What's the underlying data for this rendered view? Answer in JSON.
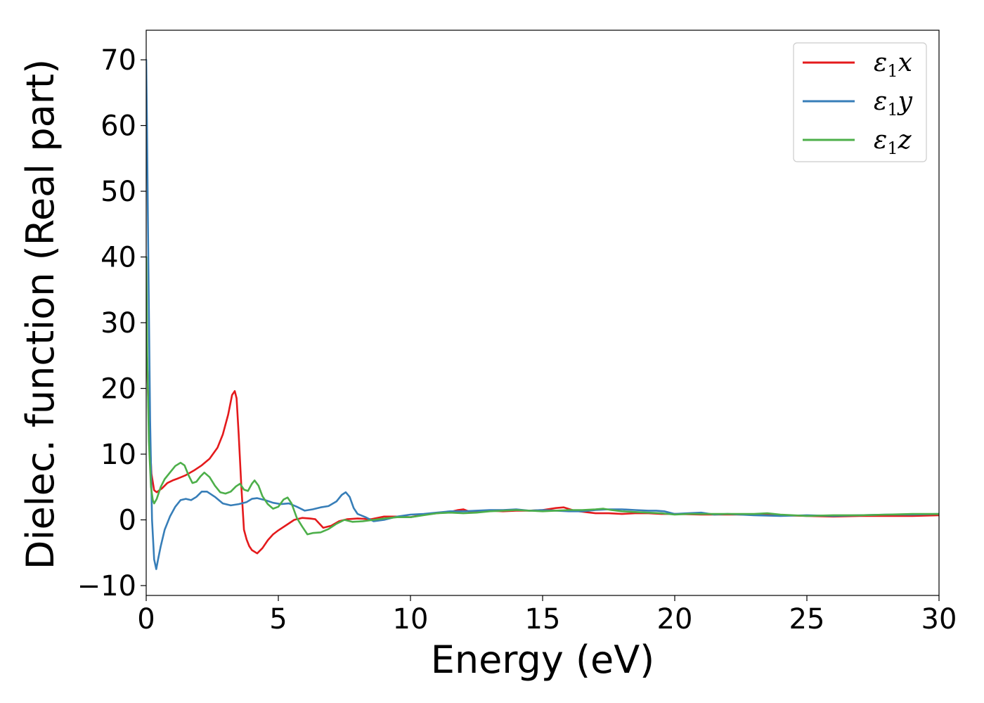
{
  "chart_data": {
    "type": "line",
    "xlabel": "Energy (eV)",
    "ylabel": "Dielec. function (Real part)",
    "xlim": [
      0,
      30
    ],
    "ylim": [
      -11.5,
      74.5
    ],
    "xticks": [
      0,
      5,
      10,
      15,
      20,
      25,
      30
    ],
    "yticks": [
      -10,
      0,
      10,
      20,
      30,
      40,
      50,
      60,
      70
    ],
    "ytick_labels": [
      "−10",
      "0",
      "10",
      "20",
      "30",
      "40",
      "50",
      "60",
      "70"
    ],
    "grid": false,
    "legend_position": "top-right",
    "series": [
      {
        "name": "ε1x",
        "name_base": "ε",
        "name_sub": "1",
        "name_suffix": "x",
        "color": "#e41a1c",
        "x": [
          0,
          0.05,
          0.1,
          0.2,
          0.3,
          0.4,
          0.6,
          0.8,
          1.0,
          1.2,
          1.5,
          1.8,
          2.1,
          2.4,
          2.7,
          2.9,
          3.1,
          3.25,
          3.35,
          3.42,
          3.5,
          3.6,
          3.7,
          3.8,
          3.9,
          4.0,
          4.2,
          4.4,
          4.6,
          4.8,
          5.0,
          5.3,
          5.6,
          5.9,
          6.2,
          6.4,
          6.7,
          7.0,
          7.3,
          7.6,
          8.0,
          8.5,
          9.0,
          9.5,
          10.0,
          10.5,
          11.0,
          11.5,
          11.8,
          12.0,
          12.2,
          12.5,
          13.0,
          13.5,
          14.0,
          14.5,
          15.0,
          15.5,
          15.8,
          16.2,
          16.6,
          17.0,
          17.5,
          18.0,
          18.5,
          19.0,
          19.5,
          20.0,
          21.0,
          22.0,
          23.0,
          24.0,
          25.0,
          26.0,
          27.0,
          28.0,
          29.0,
          30.0
        ],
        "y": [
          30,
          22,
          15,
          7,
          4.5,
          4.2,
          4.8,
          5.6,
          6.0,
          6.3,
          6.8,
          7.5,
          8.3,
          9.3,
          11.0,
          13.0,
          16.0,
          19.0,
          19.6,
          18.5,
          13.0,
          5.0,
          -1.5,
          -3.0,
          -4.0,
          -4.6,
          -5.1,
          -4.3,
          -3.1,
          -2.2,
          -1.6,
          -0.8,
          0.0,
          0.3,
          0.2,
          0.1,
          -1.2,
          -0.9,
          -0.2,
          0.1,
          0.2,
          0.1,
          0.5,
          0.5,
          0.4,
          0.8,
          1.0,
          1.2,
          1.5,
          1.6,
          1.3,
          1.2,
          1.4,
          1.3,
          1.4,
          1.4,
          1.5,
          1.8,
          1.9,
          1.4,
          1.2,
          1.0,
          1.0,
          0.9,
          1.0,
          1.0,
          0.9,
          0.9,
          0.8,
          0.8,
          0.8,
          0.7,
          0.6,
          0.5,
          0.6,
          0.6,
          0.6,
          0.7
        ]
      },
      {
        "name": "ε1y",
        "name_base": "ε",
        "name_sub": "1",
        "name_suffix": "y",
        "color": "#377eb8",
        "x": [
          0,
          0.03,
          0.08,
          0.15,
          0.22,
          0.3,
          0.38,
          0.45,
          0.55,
          0.7,
          0.9,
          1.1,
          1.3,
          1.5,
          1.7,
          1.9,
          2.1,
          2.3,
          2.6,
          2.9,
          3.2,
          3.5,
          3.8,
          4.0,
          4.2,
          4.5,
          4.8,
          5.1,
          5.4,
          5.7,
          6.0,
          6.3,
          6.6,
          6.9,
          7.2,
          7.4,
          7.55,
          7.7,
          7.85,
          8.0,
          8.3,
          8.6,
          9.0,
          9.5,
          10.0,
          10.5,
          11.0,
          11.5,
          12.0,
          12.5,
          13.0,
          13.5,
          14.0,
          14.5,
          15.0,
          15.5,
          16.0,
          16.5,
          17.0,
          17.5,
          18.0,
          18.5,
          19.0,
          19.3,
          19.6,
          20.0,
          20.5,
          21.0,
          21.5,
          22.0,
          23.0,
          24.0,
          25.0,
          26.0,
          27.0,
          28.0,
          29.0,
          30.0
        ],
        "y": [
          70,
          60,
          40,
          15,
          0,
          -6,
          -7.5,
          -6,
          -4,
          -1.5,
          0.5,
          2.0,
          3.0,
          3.2,
          3.0,
          3.5,
          4.3,
          4.3,
          3.5,
          2.5,
          2.2,
          2.4,
          2.7,
          3.2,
          3.3,
          3.0,
          2.6,
          2.4,
          2.5,
          2.0,
          1.4,
          1.6,
          1.9,
          2.1,
          2.8,
          3.8,
          4.2,
          3.5,
          1.8,
          0.9,
          0.4,
          -0.2,
          0.0,
          0.5,
          0.8,
          0.9,
          1.1,
          1.3,
          1.3,
          1.4,
          1.5,
          1.5,
          1.6,
          1.4,
          1.5,
          1.4,
          1.3,
          1.3,
          1.5,
          1.6,
          1.6,
          1.5,
          1.4,
          1.4,
          1.3,
          0.9,
          1.0,
          1.1,
          0.8,
          0.9,
          0.7,
          0.6,
          0.7,
          0.6,
          0.7,
          0.8,
          0.8,
          0.9
        ]
      },
      {
        "name": "ε1z",
        "name_base": "ε",
        "name_sub": "1",
        "name_suffix": "z",
        "color": "#4daf4a",
        "x": [
          0,
          0.04,
          0.1,
          0.18,
          0.25,
          0.3,
          0.4,
          0.55,
          0.7,
          0.9,
          1.1,
          1.3,
          1.45,
          1.6,
          1.75,
          1.9,
          2.05,
          2.2,
          2.4,
          2.6,
          2.8,
          3.0,
          3.2,
          3.4,
          3.55,
          3.7,
          3.85,
          4.0,
          4.1,
          4.25,
          4.4,
          4.6,
          4.8,
          5.0,
          5.2,
          5.35,
          5.5,
          5.7,
          5.9,
          6.1,
          6.3,
          6.6,
          6.9,
          7.2,
          7.5,
          7.8,
          8.2,
          8.6,
          9.0,
          9.5,
          10.0,
          10.5,
          11.0,
          11.5,
          12.0,
          12.5,
          13.0,
          13.5,
          14.0,
          14.5,
          15.0,
          15.5,
          16.0,
          16.5,
          17.0,
          17.3,
          17.6,
          18.0,
          18.5,
          19.0,
          19.5,
          20.0,
          20.5,
          21.0,
          22.0,
          23.0,
          23.5,
          24.0,
          25.0,
          26.0,
          27.0,
          28.0,
          29.0,
          30.0
        ],
        "y": [
          40,
          25,
          12,
          5,
          3,
          2.5,
          3.2,
          5.0,
          6.2,
          7.2,
          8.2,
          8.7,
          8.3,
          6.8,
          5.6,
          5.8,
          6.6,
          7.2,
          6.5,
          5.2,
          4.2,
          4.0,
          4.3,
          5.1,
          5.5,
          4.6,
          4.4,
          5.5,
          6.0,
          5.2,
          3.6,
          2.4,
          1.7,
          2.0,
          3.1,
          3.4,
          2.5,
          0.3,
          -1.0,
          -2.2,
          -2.0,
          -1.9,
          -1.4,
          -0.6,
          0.0,
          -0.3,
          -0.2,
          0.0,
          0.2,
          0.4,
          0.4,
          0.7,
          1.0,
          1.1,
          1.0,
          1.1,
          1.3,
          1.4,
          1.5,
          1.4,
          1.3,
          1.4,
          1.5,
          1.5,
          1.6,
          1.7,
          1.5,
          1.3,
          1.2,
          1.1,
          1.0,
          0.8,
          0.9,
          0.9,
          0.9,
          0.9,
          1.0,
          0.8,
          0.6,
          0.7,
          0.7,
          0.8,
          0.9,
          0.9
        ]
      }
    ]
  }
}
